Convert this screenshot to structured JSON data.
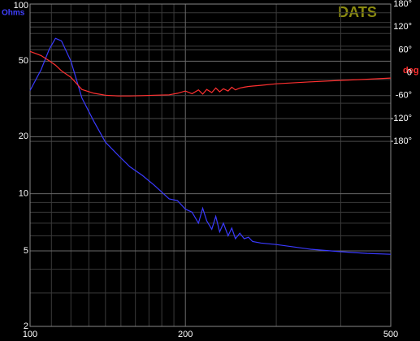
{
  "chart_data": {
    "type": "line",
    "title": "DATS",
    "y_label": "Ohms",
    "y2_label": "deg",
    "xscale": "log",
    "yscale": "log",
    "grid": true,
    "xlim": [
      100,
      500
    ],
    "xticks": [
      100,
      200,
      500
    ],
    "x_minor_grid": [
      110,
      120,
      130,
      140,
      150,
      160,
      170,
      180,
      190,
      300,
      400
    ],
    "ylim": [
      2,
      100
    ],
    "yticks": [
      2,
      5,
      10,
      20,
      50,
      100
    ],
    "y_minor_grid": [
      3,
      4,
      6,
      7,
      8,
      9,
      30,
      40,
      60,
      70,
      80,
      90
    ],
    "y2lim": [
      -665,
      180
    ],
    "y2ticks": [
      {
        "value": 180,
        "label": "180°"
      },
      {
        "value": 120,
        "label": "120°"
      },
      {
        "value": 60,
        "label": "60°"
      },
      0,
      {
        "value": -60,
        "label": "-60°"
      },
      {
        "value": -120,
        "label": "-120°"
      },
      {
        "value": -180,
        "label": "-180°"
      }
    ],
    "x": [
      100,
      105,
      109,
      112,
      115,
      120,
      126,
      133,
      140,
      148,
      156,
      165,
      174,
      186,
      193,
      200,
      206,
      212,
      216,
      220,
      225,
      229,
      233,
      237,
      242,
      246,
      250,
      255,
      260,
      265,
      270,
      280,
      300,
      350,
      400,
      450,
      500
    ],
    "series": [
      {
        "name": "Ohms",
        "color": "#3a3aff",
        "values": [
          35,
          45,
          58,
          66,
          64,
          50,
          32,
          24,
          18.7,
          16,
          13.9,
          12.5,
          11.1,
          9.4,
          9.2,
          8.3,
          8.0,
          7.0,
          8.4,
          7.2,
          6.5,
          7.6,
          6.3,
          7.0,
          6.0,
          6.6,
          5.8,
          6.2,
          5.8,
          5.9,
          5.6,
          5.5,
          5.4,
          5.1,
          4.95,
          4.85,
          4.8
        ]
      },
      {
        "name": "deg",
        "color": "#ff3030",
        "axis": "y2",
        "values": [
          56,
          45,
          31,
          20,
          5,
          -12,
          -44,
          -54,
          -59,
          -61,
          -61,
          -60,
          -59,
          -58,
          -54,
          -48,
          -55,
          -45,
          -56,
          -44,
          -52,
          -40,
          -50,
          -42,
          -48,
          -38,
          -45,
          -40,
          -38,
          -36,
          -35,
          -33,
          -29,
          -24,
          -20,
          -17,
          -14
        ]
      }
    ]
  }
}
